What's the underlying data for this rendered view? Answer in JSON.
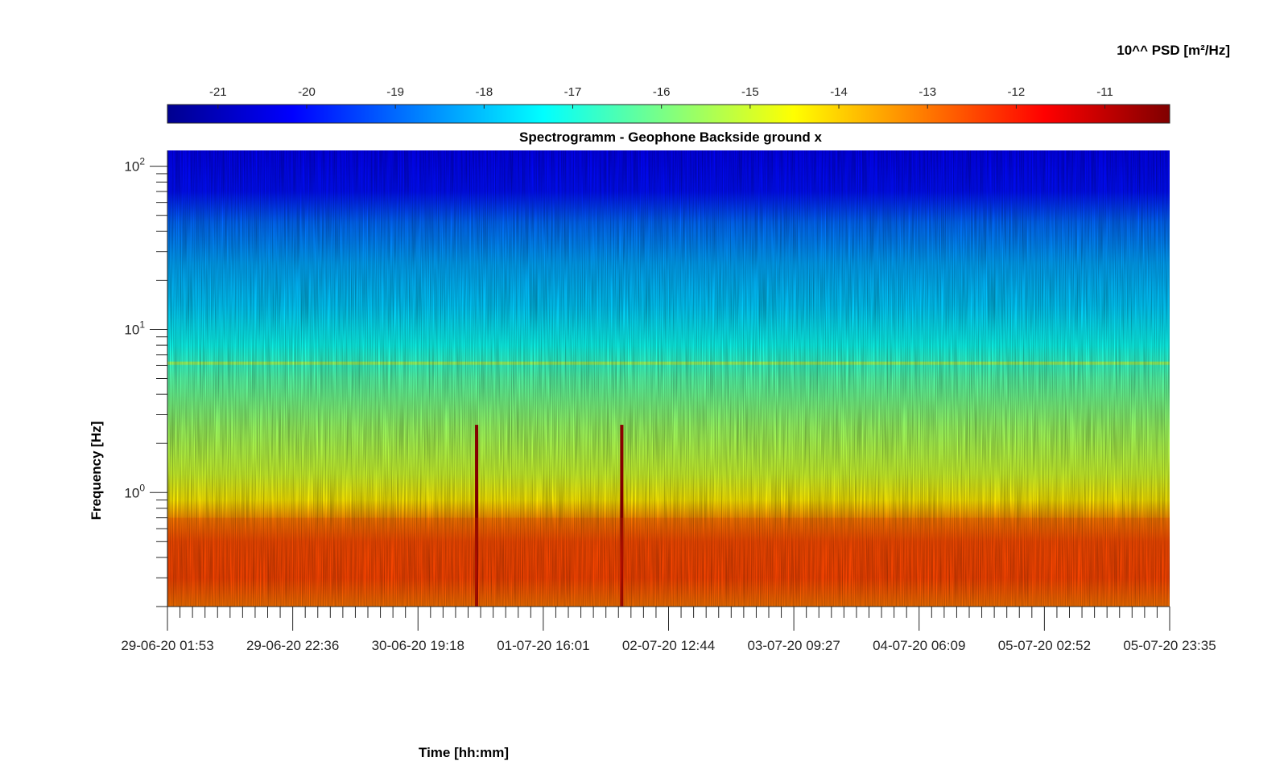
{
  "colors": {
    "jet": [
      "#00008f",
      "#0000ff",
      "#0080ff",
      "#00ffff",
      "#80ff80",
      "#ffff00",
      "#ff8000",
      "#ff0000",
      "#800000"
    ]
  },
  "colorbar": {
    "title": "10^^ PSD [m²/Hz]",
    "ticks": [
      -21,
      -20,
      -19,
      -18,
      -17,
      -16,
      -15,
      -14,
      -13,
      -12,
      -11
    ],
    "range": [
      -21.57,
      -10.27
    ]
  },
  "chart_data": {
    "type": "heatmap",
    "title": "Spectrogramm - Geophone Backside ground x",
    "xlabel": "Time [hh:mm]",
    "ylabel": "Frequency [Hz]",
    "yscale": "log",
    "ylim": [
      0.2,
      125
    ],
    "ytick_labels": [
      {
        "value": 100,
        "base": "10",
        "exp": "2"
      },
      {
        "value": 10,
        "base": "10",
        "exp": "1"
      },
      {
        "value": 1,
        "base": "10",
        "exp": "0"
      }
    ],
    "x_tick_labels": [
      "29-06-20 01:53",
      "29-06-20 22:36",
      "30-06-20 19:18",
      "01-07-20 16:01",
      "02-07-20 12:44",
      "03-07-20 09:27",
      "04-07-20 06:09",
      "05-07-20 02:52",
      "05-07-20 23:35"
    ],
    "x_minor_ticks_per_interval": 10,
    "color_scale": "jet",
    "colorbar_label": "10^^ PSD [m²/Hz]",
    "features": [
      {
        "type": "broadband_spike",
        "time": "01-07-20 05:00",
        "max_freq_hz": 2.6
      },
      {
        "type": "broadband_spike",
        "time": "02-07-20 05:00",
        "max_freq_hz": 2.6
      },
      {
        "type": "narrow_band",
        "freq_hz": 6.2
      },
      {
        "type": "high_energy_band",
        "freq_range_hz": [
          0.2,
          0.7
        ],
        "log_psd": -12.3
      }
    ]
  }
}
